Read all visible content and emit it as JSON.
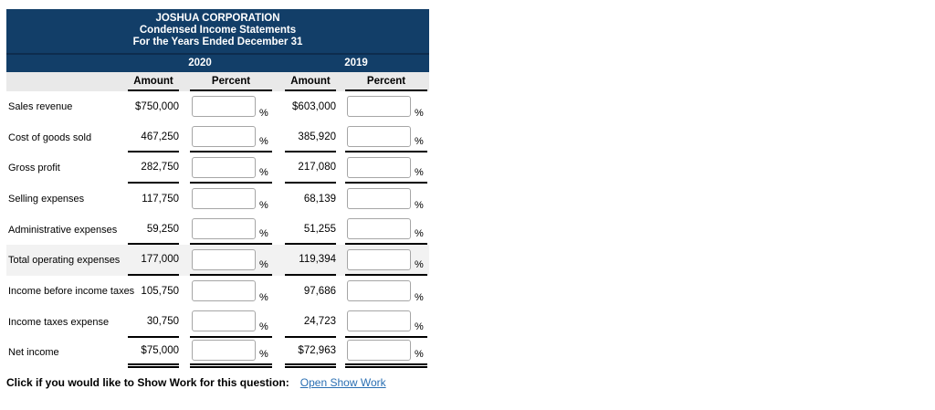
{
  "statement": {
    "company": "JOSHUA CORPORATION",
    "subtitle": "Condensed Income Statements",
    "period": "For the Years Ended December 31",
    "years": [
      "2020",
      "2019"
    ],
    "column_headers": [
      "Amount",
      "Percent"
    ],
    "percent_suffix": "%",
    "inputs": {
      "value": "",
      "placeholder": ""
    },
    "rows": [
      {
        "label": "Sales revenue",
        "amount_2020": "$750,000",
        "amount_2019": "$603,000",
        "rule": "none",
        "shaded": false
      },
      {
        "label": "Cost of goods sold",
        "amount_2020": "467,250",
        "amount_2019": "385,920",
        "rule": "single",
        "shaded": false
      },
      {
        "label": "Gross profit",
        "amount_2020": "282,750",
        "amount_2019": "217,080",
        "rule": "single",
        "shaded": false
      },
      {
        "label": "Selling expenses",
        "amount_2020": "117,750",
        "amount_2019": "68,139",
        "rule": "none",
        "shaded": false
      },
      {
        "label": "Administrative expenses",
        "amount_2020": "59,250",
        "amount_2019": "51,255",
        "rule": "single",
        "shaded": false
      },
      {
        "label": "Total operating expenses",
        "amount_2020": "177,000",
        "amount_2019": "119,394",
        "rule": "single",
        "shaded": true
      },
      {
        "label": "Income before income taxes",
        "amount_2020": "105,750",
        "amount_2019": "97,686",
        "rule": "none",
        "shaded": false
      },
      {
        "label": "Income taxes expense",
        "amount_2020": "30,750",
        "amount_2019": "24,723",
        "rule": "single",
        "shaded": false
      },
      {
        "label": "Net income",
        "amount_2020": "$75,000",
        "amount_2019": "$72,963",
        "rule": "double",
        "shaded": false
      }
    ]
  },
  "footer": {
    "prompt": "Click if you would like to Show Work for this question:",
    "link_label": "Open Show Work"
  },
  "colors": {
    "header_navy": "#123e68",
    "header_separator": "#0d2c4e",
    "band_gray": "#e9e9e9",
    "shaded_row": "#f2f2f2",
    "rule_black": "#000000",
    "input_border": "#a6a6a6",
    "link_blue": "#2a6fb3"
  }
}
